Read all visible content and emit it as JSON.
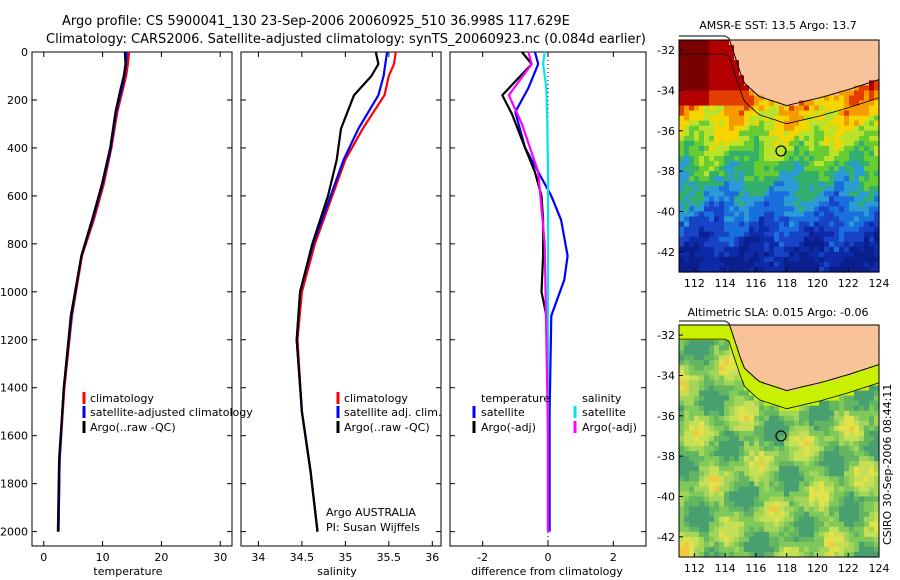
{
  "title": {
    "line1": "Argo profile: CS 5900041_130 23-Sep-2006 20060925_510 36.998S 117.629E",
    "line2": "Climatology: CARS2006. Satellite-adjusted climatology: synTS_20060923.nc (0.084d earlier)"
  },
  "colors": {
    "climatology": "#ff0000",
    "satellite": "#0000ff",
    "argo": "#000000",
    "salinity_satellite": "#00e5ee",
    "salinity_argo": "#ff00ff",
    "land": "#f8c39a"
  },
  "chart_data": [
    {
      "id": "temperature",
      "type": "line",
      "xlabel": "temperature",
      "xlim": [
        -2,
        32
      ],
      "ylim": [
        0,
        2060
      ],
      "x_ticks": [
        0,
        10,
        20,
        30
      ],
      "y_ticks": [
        0,
        200,
        400,
        600,
        800,
        1000,
        1200,
        1400,
        1600,
        1800,
        2000
      ],
      "legend": [
        "climatology",
        "satellite-adjusted climatology",
        "Argo(..raw -QC)"
      ],
      "series": [
        {
          "name": "climatology",
          "color": "#ff0000",
          "x": [
            14.5,
            14.3,
            14.0,
            13.5,
            12.5,
            11.5,
            10.2,
            8.5,
            6.5,
            4.8,
            3.5,
            2.7,
            2.5
          ],
          "y": [
            0,
            50,
            100,
            150,
            250,
            400,
            550,
            700,
            850,
            1100,
            1400,
            1700,
            2000
          ]
        },
        {
          "name": "satellite",
          "color": "#0000ff",
          "x": [
            14.1,
            14.0,
            13.7,
            13.3,
            12.3,
            11.4,
            10.0,
            8.3,
            6.4,
            4.7,
            3.4,
            2.7,
            2.5
          ],
          "y": [
            0,
            50,
            100,
            150,
            250,
            400,
            550,
            700,
            850,
            1100,
            1400,
            1700,
            2000
          ]
        },
        {
          "name": "Argo",
          "color": "#000000",
          "x": [
            13.8,
            13.9,
            13.6,
            13.1,
            12.2,
            11.3,
            9.9,
            8.2,
            6.4,
            4.6,
            3.4,
            2.6,
            2.4
          ],
          "y": [
            0,
            50,
            100,
            150,
            250,
            400,
            550,
            700,
            850,
            1100,
            1400,
            1700,
            2000
          ]
        }
      ]
    },
    {
      "id": "salinity",
      "type": "line",
      "xlabel": "salinity",
      "xlim": [
        33.8,
        36.1
      ],
      "ylim": [
        0,
        2060
      ],
      "x_ticks": [
        34,
        34.5,
        35,
        35.5,
        36
      ],
      "legend": [
        "climatology",
        "satellite adj. clim.",
        "Argo(..raw -QC)"
      ],
      "annotation": [
        "Argo AUSTRALIA",
        "PI: Susan Wijffels"
      ],
      "series": [
        {
          "name": "climatology",
          "color": "#ff0000",
          "x": [
            35.58,
            35.56,
            35.5,
            35.45,
            35.2,
            35.0,
            34.85,
            34.65,
            34.5,
            34.45,
            34.5,
            34.6,
            34.68
          ],
          "y": [
            0,
            50,
            100,
            180,
            320,
            450,
            600,
            800,
            1000,
            1200,
            1500,
            1750,
            2000
          ]
        },
        {
          "name": "satellite",
          "color": "#0000ff",
          "x": [
            35.48,
            35.46,
            35.44,
            35.38,
            35.15,
            34.98,
            34.83,
            34.63,
            34.48,
            34.44,
            34.5,
            34.6,
            34.68
          ],
          "y": [
            0,
            50,
            100,
            180,
            320,
            450,
            600,
            800,
            1000,
            1200,
            1500,
            1750,
            2000
          ]
        },
        {
          "name": "Argo",
          "color": "#000000",
          "x": [
            35.35,
            35.38,
            35.3,
            35.1,
            34.95,
            34.9,
            34.8,
            34.62,
            34.48,
            34.44,
            34.5,
            34.6,
            34.68
          ],
          "y": [
            0,
            50,
            100,
            180,
            320,
            450,
            600,
            800,
            1000,
            1200,
            1500,
            1750,
            2000
          ]
        }
      ]
    },
    {
      "id": "difference",
      "type": "line",
      "xlabel": "difference from climatology",
      "xlim": [
        -3,
        3
      ],
      "ylim": [
        0,
        2060
      ],
      "x_ticks": [
        -2,
        0,
        2
      ],
      "legend_left": {
        "title": "temperature",
        "items": [
          "satellite",
          "Argo(-adj)"
        ]
      },
      "legend_right": {
        "title": "salinity",
        "items": [
          "satellite",
          "Argo(-adj)"
        ]
      },
      "series": [
        {
          "name": "temperature satellite",
          "color": "#0000ff",
          "x": [
            -0.4,
            -0.3,
            -0.6,
            -1.0,
            -0.7,
            -0.3,
            0.1,
            0.4,
            0.6,
            0.5,
            0.1,
            0.05,
            0.05
          ],
          "y": [
            0,
            50,
            150,
            250,
            400,
            500,
            600,
            700,
            850,
            950,
            1100,
            1500,
            2000
          ]
        },
        {
          "name": "temperature Argo",
          "color": "#000000",
          "x": [
            -0.8,
            -0.5,
            -1.4,
            -1.1,
            -0.7,
            -0.4,
            -0.2,
            -0.15,
            -0.15,
            -0.2,
            -0.05,
            0.0,
            0.0
          ],
          "y": [
            0,
            50,
            180,
            260,
            400,
            500,
            600,
            700,
            850,
            1000,
            1100,
            1500,
            2000
          ]
        },
        {
          "name": "salinity satellite",
          "color": "#00e5ee",
          "x": [
            -0.1,
            -0.15,
            -0.05,
            -0.02,
            0.0,
            0.0,
            0.0,
            0.0,
            0.0
          ],
          "y": [
            0,
            50,
            150,
            300,
            500,
            800,
            1200,
            1600,
            2000
          ]
        },
        {
          "name": "salinity Argo",
          "color": "#ff00ff",
          "x": [
            -0.6,
            -0.5,
            -1.2,
            -0.8,
            -0.3,
            -0.1,
            -0.05,
            0.0,
            0.0
          ],
          "y": [
            0,
            50,
            180,
            300,
            500,
            800,
            1200,
            1600,
            2000
          ]
        }
      ]
    },
    {
      "id": "sst_map",
      "type": "heatmap",
      "title": "AMSR-E SST: 13.5 Argo: 13.7",
      "x_ticks": [
        112,
        114,
        116,
        118,
        120,
        122,
        124
      ],
      "y_ticks": [
        -32,
        -34,
        -36,
        -38,
        -40,
        -42
      ],
      "xlim": [
        111,
        124
      ],
      "ylim": [
        -43,
        -31.5
      ],
      "marker": {
        "lon": 117.629,
        "lat": -36.998
      }
    },
    {
      "id": "sla_map",
      "type": "heatmap",
      "title": "Altimetric SLA: 0.015 Argo: -0.06",
      "x_ticks": [
        112,
        114,
        116,
        118,
        120,
        122,
        124
      ],
      "y_ticks": [
        -32,
        -34,
        -36,
        -38,
        -40,
        -42
      ],
      "xlim": [
        111,
        124
      ],
      "ylim": [
        -43,
        -31.5
      ],
      "marker": {
        "lon": 117.629,
        "lat": -36.998
      }
    }
  ],
  "footer": "CSIRO 30-Sep-2006 08:44:11"
}
